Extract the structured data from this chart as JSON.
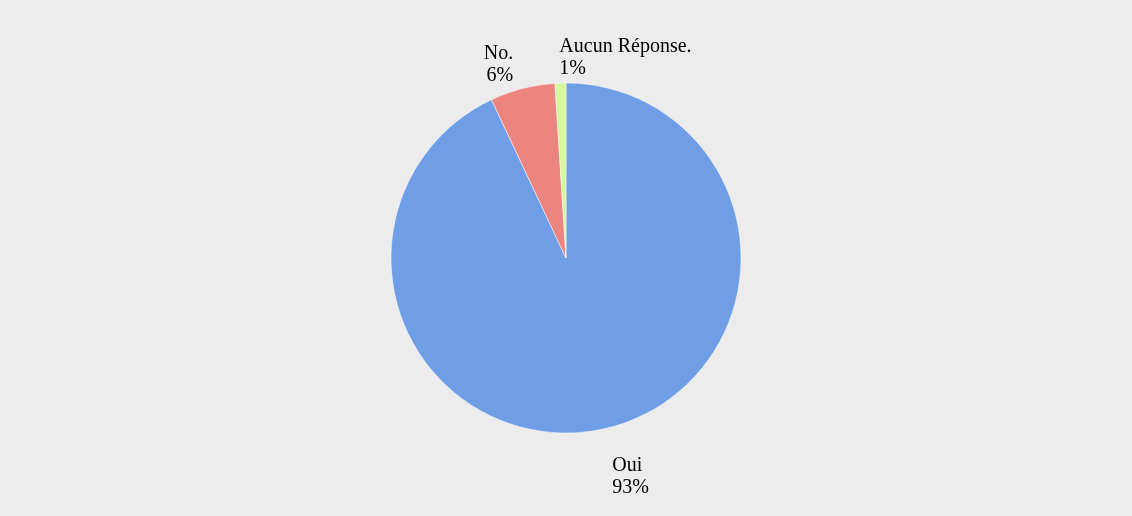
{
  "chart_data": {
    "type": "pie",
    "categories": [
      "Oui",
      "No.",
      "Aucun Réponse."
    ],
    "values": [
      93,
      6,
      1
    ],
    "colors": [
      "#6f9ee6",
      "#ec8580",
      "#d6f79c"
    ],
    "value_labels": [
      "93%",
      "6%",
      "1%"
    ],
    "legend": false
  }
}
